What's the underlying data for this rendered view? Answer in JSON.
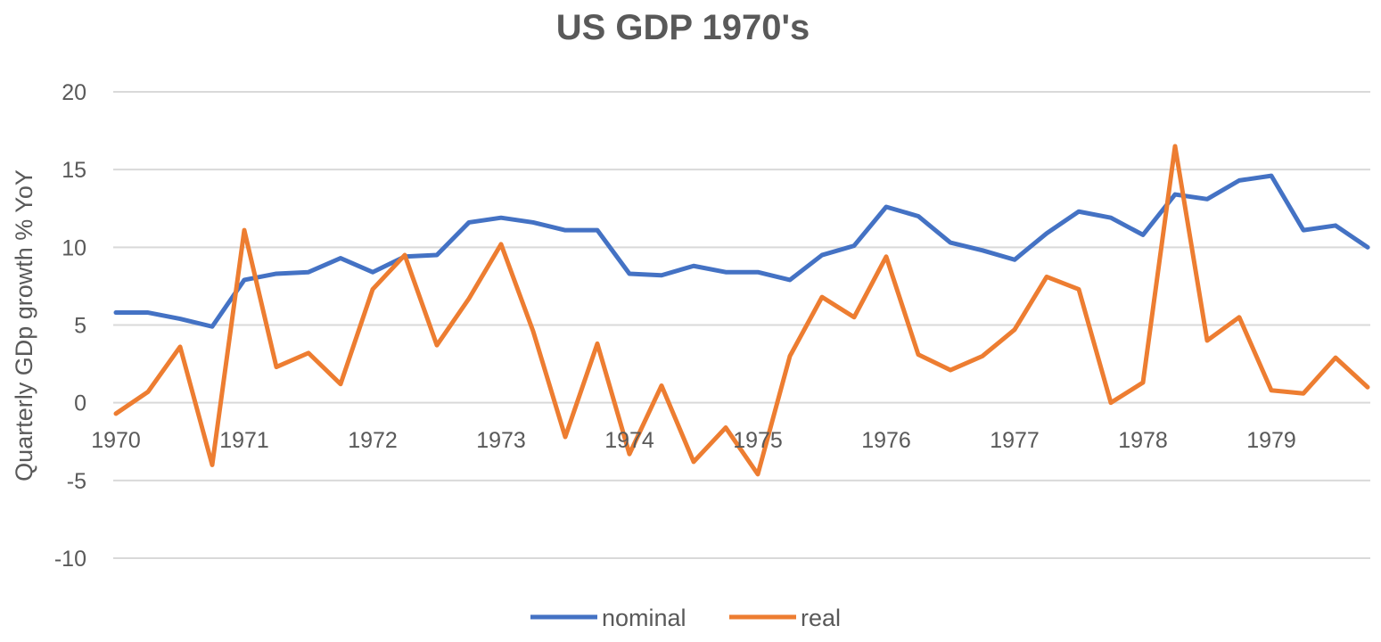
{
  "chart_data": {
    "type": "line",
    "title": "US GDP 1970's",
    "xlabel": "",
    "ylabel": "Quarterly GDp growth % YoY",
    "ylim": [
      -10,
      20
    ],
    "yticks": [
      20,
      15,
      10,
      5,
      0,
      -5,
      -10
    ],
    "xtick_labels": [
      "1970",
      "1971",
      "1972",
      "1973",
      "1974",
      "1975",
      "1976",
      "1977",
      "1978",
      "1979"
    ],
    "grid": true,
    "legend_position": "bottom",
    "x_points_per_year": 4,
    "series": [
      {
        "name": "nominal",
        "color": "#4472C4",
        "values": [
          5.8,
          5.8,
          5.4,
          4.9,
          7.9,
          8.3,
          8.4,
          9.3,
          8.4,
          9.4,
          9.5,
          11.6,
          11.9,
          11.6,
          11.1,
          11.1,
          8.3,
          8.2,
          8.8,
          8.4,
          8.4,
          7.9,
          9.5,
          10.1,
          12.6,
          12.0,
          10.3,
          9.8,
          9.2,
          10.9,
          12.3,
          11.9,
          10.8,
          13.4,
          13.1,
          14.3,
          14.6,
          11.1,
          11.4,
          10.0
        ]
      },
      {
        "name": "real",
        "color": "#ED7D31",
        "values": [
          -0.7,
          0.7,
          3.6,
          -4.0,
          11.1,
          2.3,
          3.2,
          1.2,
          7.3,
          9.5,
          3.7,
          6.7,
          10.2,
          4.6,
          -2.2,
          3.8,
          -3.3,
          1.1,
          -3.8,
          -1.6,
          -4.6,
          3.0,
          6.8,
          5.5,
          9.4,
          3.1,
          2.1,
          3.0,
          4.7,
          8.1,
          7.3,
          0.0,
          1.3,
          16.5,
          4.0,
          5.5,
          0.8,
          0.6,
          2.9,
          1.0
        ]
      }
    ]
  }
}
